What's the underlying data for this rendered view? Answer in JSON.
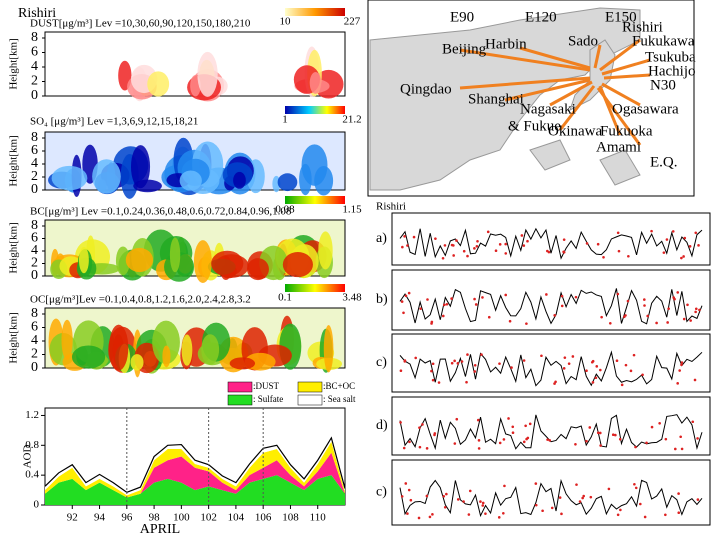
{
  "left_title": "Rishiri",
  "height_label": "Height[km]",
  "height_ticks": [
    8,
    6,
    4,
    2,
    0
  ],
  "panels": [
    {
      "title": "DUST[μg/m³]  Lev =10,30,60,90,120,150,180,210",
      "cbar_min": 10,
      "cbar_max": 227
    },
    {
      "title": "SO₄ [μg/m³] Lev =1,3,6,9,12,15,18,21",
      "cbar_min": 1,
      "cbar_max": 21.2
    },
    {
      "title": "BC[μg/m³]  Lev =0.1,0.24,0.36,0.48,0.6,0.72,0.84,0.96,1.08",
      "cbar_min": 0.08,
      "cbar_max": 1.15
    },
    {
      "title": "OC[μg/m³]Lev =0.1,0.4,0.8,1.2,1.6,2.0,2.4,2.8,3.2",
      "cbar_min": 0.1,
      "cbar_max": 3.48
    }
  ],
  "chart_data": {
    "type": "area",
    "y_label": "AOD",
    "x_label": "APRIL",
    "x": [
      90,
      91,
      92,
      93,
      94,
      95,
      96,
      97,
      98,
      99,
      100,
      101,
      102,
      103,
      104,
      105,
      106,
      107,
      108,
      109,
      110,
      111,
      112
    ],
    "xlim": [
      90,
      112
    ],
    "xticks": [
      92,
      94,
      96,
      98,
      100,
      102,
      104,
      106,
      108,
      110
    ],
    "ylim": [
      0,
      1.3
    ],
    "yticks": [
      0,
      0.4,
      0.8,
      1.2
    ],
    "series": [
      {
        "name": ": Sulfate",
        "color": "#22dd22",
        "values": [
          0.15,
          0.3,
          0.35,
          0.2,
          0.3,
          0.2,
          0.1,
          0.15,
          0.3,
          0.35,
          0.3,
          0.2,
          0.25,
          0.2,
          0.15,
          0.3,
          0.35,
          0.4,
          0.3,
          0.2,
          0.35,
          0.4,
          0.15
        ]
      },
      {
        "name": ":DUST",
        "color": "#ff2288",
        "values": [
          0,
          0,
          0,
          0,
          0,
          0,
          0,
          0,
          0.2,
          0.25,
          0.35,
          0.3,
          0.2,
          0.1,
          0.05,
          0.1,
          0.15,
          0.2,
          0.1,
          0.05,
          0.1,
          0.3,
          0
        ]
      },
      {
        "name": ":BC+OC",
        "color": "#ffee00",
        "values": [
          0.05,
          0.08,
          0.15,
          0.05,
          0.05,
          0.05,
          0.03,
          0.05,
          0.1,
          0.15,
          0.1,
          0.05,
          0.05,
          0.05,
          0.05,
          0.1,
          0.2,
          0.15,
          0.1,
          0.05,
          0.1,
          0.15,
          0.03
        ]
      },
      {
        "name": ": Sea salt",
        "color": "#ffffff",
        "values": [
          0.05,
          0.05,
          0.04,
          0.05,
          0.06,
          0.05,
          0.04,
          0.04,
          0.05,
          0.05,
          0.06,
          0.05,
          0.04,
          0.04,
          0.05,
          0.05,
          0.06,
          0.05,
          0.04,
          0.05,
          0.05,
          0.05,
          0.04
        ]
      }
    ]
  },
  "map": {
    "labels": [
      "E90",
      "E120",
      "E150",
      "Rishiri",
      "Fukukawa",
      "Beijing",
      "Harbin",
      "Sado",
      "Tsukuba",
      "Hachijo",
      "N30",
      "Qingdao",
      "Shanghai",
      "Nagasaki",
      "Ogasawara",
      "& Fukue",
      "Okinawa",
      "Fukuoka",
      "Amami",
      "E.Q."
    ]
  },
  "right": {
    "title": "Rishiri",
    "panel_labels": [
      "a)",
      "b)",
      "c)",
      "d)",
      "c)"
    ]
  }
}
